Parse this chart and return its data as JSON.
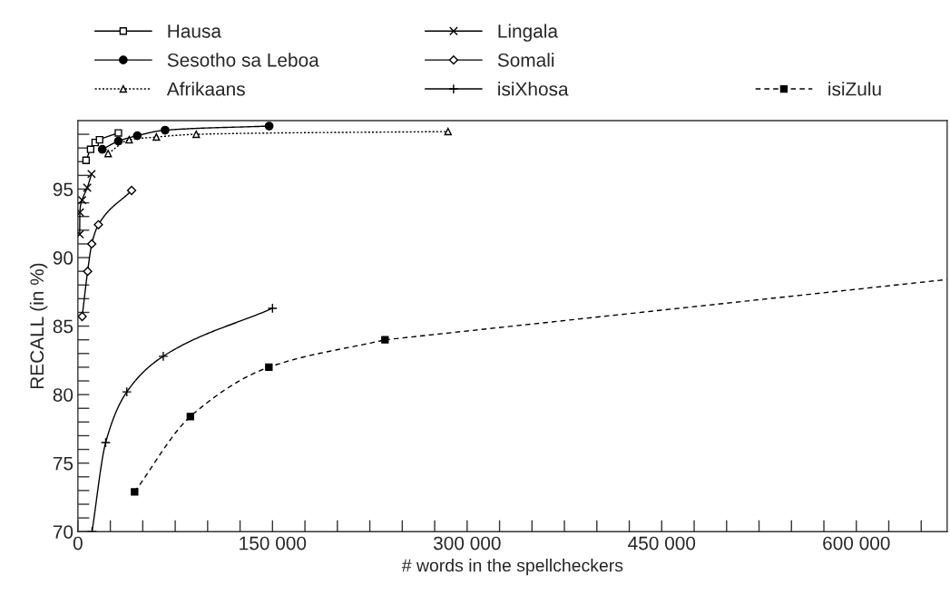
{
  "chart_data": {
    "type": "line",
    "xlabel": "# words in the spellcheckers",
    "ylabel": "RECALL (in %)",
    "xlim": [
      0,
      670000
    ],
    "ylim": [
      70,
      100
    ],
    "xticks": [
      {
        "value": 0,
        "label": "0"
      },
      {
        "value": 25000,
        "label": null
      },
      {
        "value": 50000,
        "label": null
      },
      {
        "value": 75000,
        "label": null
      },
      {
        "value": 100000,
        "label": null
      },
      {
        "value": 125000,
        "label": null
      },
      {
        "value": 150000,
        "label": "150 000"
      },
      {
        "value": 175000,
        "label": null
      },
      {
        "value": 200000,
        "label": null
      },
      {
        "value": 225000,
        "label": null
      },
      {
        "value": 250000,
        "label": null
      },
      {
        "value": 275000,
        "label": null
      },
      {
        "value": 300000,
        "label": "300 000"
      },
      {
        "value": 325000,
        "label": null
      },
      {
        "value": 350000,
        "label": null
      },
      {
        "value": 375000,
        "label": null
      },
      {
        "value": 400000,
        "label": null
      },
      {
        "value": 425000,
        "label": null
      },
      {
        "value": 450000,
        "label": "450 000"
      },
      {
        "value": 475000,
        "label": null
      },
      {
        "value": 500000,
        "label": null
      },
      {
        "value": 525000,
        "label": null
      },
      {
        "value": 550000,
        "label": null
      },
      {
        "value": 575000,
        "label": null
      },
      {
        "value": 600000,
        "label": "600 000"
      },
      {
        "value": 625000,
        "label": null
      },
      {
        "value": 650000,
        "label": null
      }
    ],
    "yticks": [
      70,
      {
        "value": 71,
        "label": null
      },
      {
        "value": 72,
        "label": null
      },
      {
        "value": 73,
        "label": null
      },
      {
        "value": 74,
        "label": null
      },
      75,
      {
        "value": 76,
        "label": null
      },
      {
        "value": 77,
        "label": null
      },
      {
        "value": 78,
        "label": null
      },
      {
        "value": 79,
        "label": null
      },
      80,
      {
        "value": 81,
        "label": null
      },
      {
        "value": 82,
        "label": null
      },
      {
        "value": 83,
        "label": null
      },
      {
        "value": 84,
        "label": null
      },
      85,
      {
        "value": 86,
        "label": null
      },
      {
        "value": 87,
        "label": null
      },
      {
        "value": 88,
        "label": null
      },
      {
        "value": 89,
        "label": null
      },
      90,
      {
        "value": 91,
        "label": null
      },
      {
        "value": 92,
        "label": null
      },
      {
        "value": 93,
        "label": null
      },
      {
        "value": 94,
        "label": null
      },
      95,
      {
        "value": 96,
        "label": null
      },
      {
        "value": 97,
        "label": null
      },
      {
        "value": 98,
        "label": null
      },
      {
        "value": 99,
        "label": null
      }
    ],
    "grid": false,
    "legend": "top",
    "series": [
      {
        "name": "Hausa",
        "color": "#000000",
        "marker": "square-open",
        "line_style": "solid",
        "x": [
          6300,
          9800,
          13300,
          16700,
          31200
        ],
        "values": [
          97.1,
          97.9,
          98.4,
          98.6,
          99.1
        ]
      },
      {
        "name": "Sesotho sa Leboa",
        "color": "#000000",
        "marker": "circle",
        "line_style": "solid",
        "x": [
          18800,
          31200,
          45800,
          67200,
          147400
        ],
        "values": [
          97.9,
          98.5,
          98.9,
          99.3,
          99.6
        ]
      },
      {
        "name": "Afrikaans",
        "color": "#000000",
        "marker": "triangle-open",
        "line_style": "dotted",
        "x": [
          23300,
          39500,
          60500,
          91200,
          285300
        ],
        "values": [
          97.6,
          98.6,
          98.8,
          99.0,
          99.2
        ]
      },
      {
        "name": "Lingala",
        "color": "#000000",
        "marker": "cross",
        "line_style": "solid",
        "x": [
          1400,
          1500,
          3300,
          7200,
          10500
        ],
        "values": [
          91.7,
          93.3,
          94.2,
          95.1,
          96.1
        ]
      },
      {
        "name": "Somali",
        "color": "#000000",
        "marker": "diamond-open",
        "line_style": "solid",
        "x": [
          3300,
          7500,
          10700,
          15800,
          41400
        ],
        "values": [
          85.7,
          89.0,
          91.0,
          92.4,
          94.9
        ]
      },
      {
        "name": "isiXhosa",
        "color": "#000000",
        "marker": "plus",
        "line_style": "solid",
        "x": [
          10900,
          21400,
          37700,
          65800,
          150000
        ],
        "values": [
          70.0,
          76.5,
          80.2,
          82.8,
          86.3
        ]
      },
      {
        "name": "isiZulu",
        "color": "#000000",
        "marker": "square",
        "line_style": "dashed",
        "x": [
          43700,
          86700,
          147200,
          236700
        ],
        "values": [
          72.9,
          78.4,
          82.0,
          84.0
        ]
      },
      {
        "color": "#000000",
        "marker": "none",
        "line_style": "dashed",
        "x": [
          236700,
          670000
        ],
        "values": [
          84.0,
          88.4
        ]
      }
    ]
  }
}
